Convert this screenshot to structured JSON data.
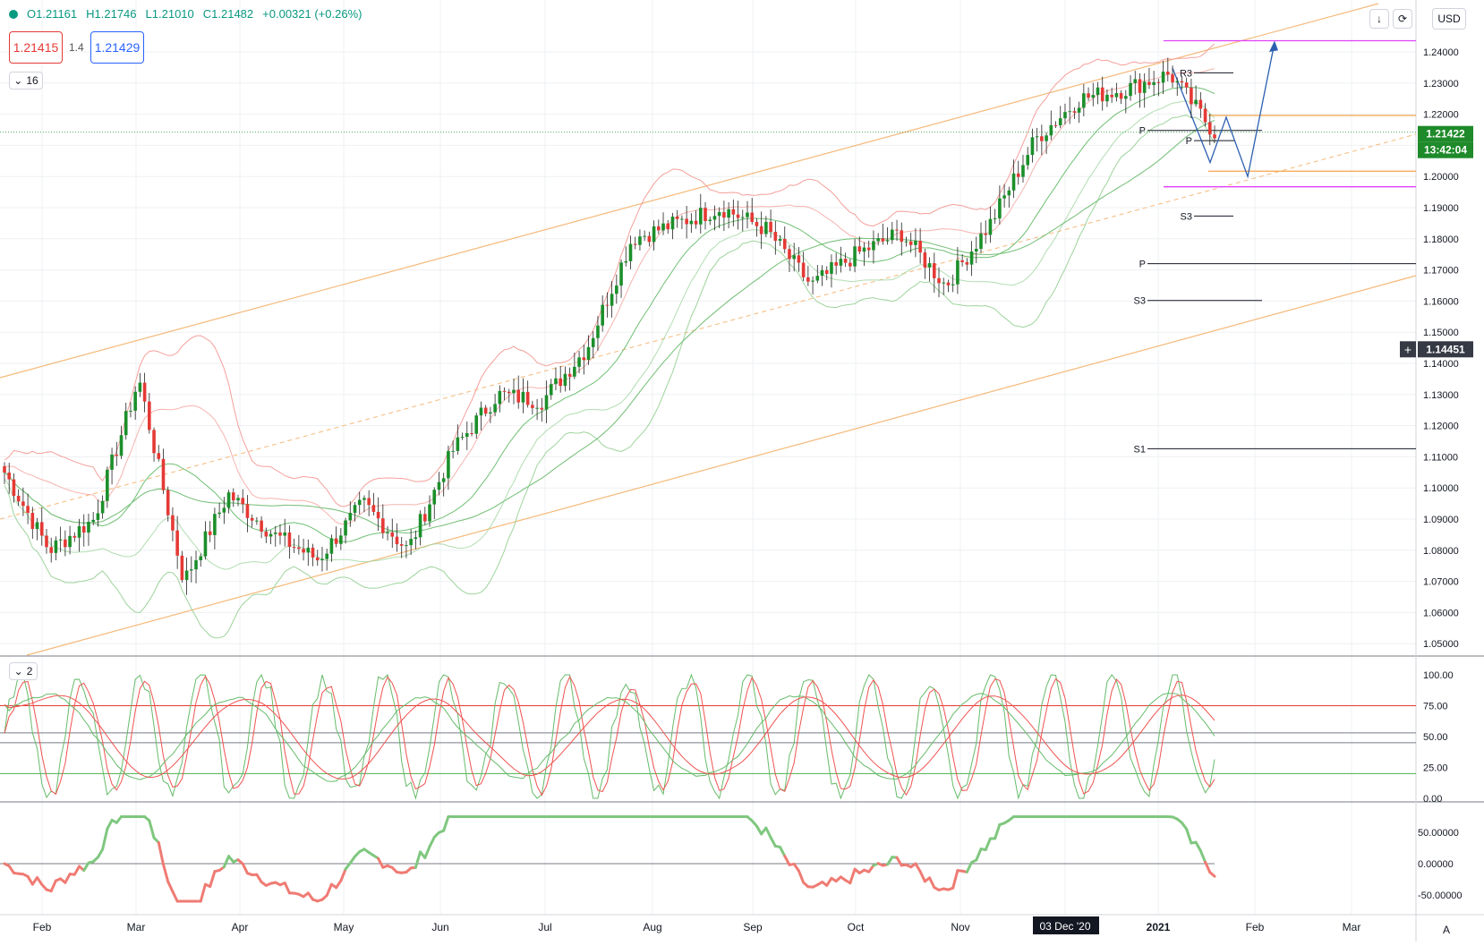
{
  "header": {
    "open": "O1.21161",
    "high": "H1.21746",
    "low": "L1.21010",
    "close": "C1.21482",
    "change": "+0.00321 (+0.26%)"
  },
  "bid_box": "1.21415",
  "spread": "1.4",
  "ask_box": "1.21429",
  "collapse_main": "16",
  "collapse_stoch": "2",
  "currency": "USD",
  "auto_label": "A",
  "price_tag_last": "1.21422",
  "price_tag_countdown": "13:42:04",
  "price_tag_crosshair": "1.14451",
  "colors": {
    "up": "#1b8f2a",
    "down": "#e53935",
    "channel": "#f5b97a",
    "bb_upper": "#f4a09a",
    "bb_lower": "#9ed49c",
    "ma_green": "#6fbf73",
    "magenta": "#e040fb",
    "orange_level": "#f5a54a",
    "projection": "#2c5fb0"
  },
  "chart_data": {
    "type": "candlestick",
    "instrument_quote": "USD",
    "y_ticks": [
      "1.24000",
      "1.23000",
      "1.22000",
      "1.21000",
      "1.20000",
      "1.19000",
      "1.18000",
      "1.17000",
      "1.16000",
      "1.15000",
      "1.14000",
      "1.13000",
      "1.12000",
      "1.11000",
      "1.10000",
      "1.09000",
      "1.08000",
      "1.07000",
      "1.06000",
      "1.05000"
    ],
    "ylim": [
      1.046,
      1.252
    ],
    "x_ticks": [
      "Feb",
      "Mar",
      "Apr",
      "May",
      "Jun",
      "Jul",
      "Aug",
      "Sep",
      "Oct",
      "Nov",
      "03 Dec '20",
      "2021",
      "Feb",
      "Mar"
    ],
    "pivot_labels": [
      "R3",
      "P",
      "P",
      "S3",
      "P",
      "S3",
      "S1"
    ],
    "approx_close_path": [
      {
        "t": "Feb",
        "v": 1.105
      },
      {
        "t": "mid Feb",
        "v": 1.08
      },
      {
        "t": "Mar",
        "v": 1.09
      },
      {
        "t": "mid Mar",
        "v": 1.135
      },
      {
        "t": "late Mar",
        "v": 1.07
      },
      {
        "t": "Apr",
        "v": 1.098
      },
      {
        "t": "mid Apr",
        "v": 1.085
      },
      {
        "t": "May",
        "v": 1.077
      },
      {
        "t": "mid May",
        "v": 1.095
      },
      {
        "t": "late May",
        "v": 1.08
      },
      {
        "t": "Jun",
        "v": 1.112
      },
      {
        "t": "mid Jun",
        "v": 1.13
      },
      {
        "t": "Jul",
        "v": 1.128
      },
      {
        "t": "mid Jul",
        "v": 1.145
      },
      {
        "t": "Aug",
        "v": 1.18
      },
      {
        "t": "mid Aug",
        "v": 1.185
      },
      {
        "t": "Sep",
        "v": 1.19
      },
      {
        "t": "mid Sep",
        "v": 1.183
      },
      {
        "t": "late Sep",
        "v": 1.165
      },
      {
        "t": "Oct",
        "v": 1.175
      },
      {
        "t": "mid Oct",
        "v": 1.182
      },
      {
        "t": "Nov",
        "v": 1.165
      },
      {
        "t": "mid Nov",
        "v": 1.185
      },
      {
        "t": "Dec",
        "v": 1.212
      },
      {
        "t": "mid Dec",
        "v": 1.225
      },
      {
        "t": "2021",
        "v": 1.228
      },
      {
        "t": "early Jan",
        "v": 1.233
      },
      {
        "t": "mid Jan",
        "v": 1.214
      }
    ],
    "stochastic": {
      "y_ticks": [
        "100.00",
        "75.00",
        "50.00",
        "25.00",
        "0.00"
      ],
      "ylim": [
        0,
        100
      ]
    },
    "momentum": {
      "y_ticks": [
        "50.00000",
        "0.00000",
        "-50.00000"
      ],
      "ylim": [
        -65,
        80
      ]
    }
  }
}
